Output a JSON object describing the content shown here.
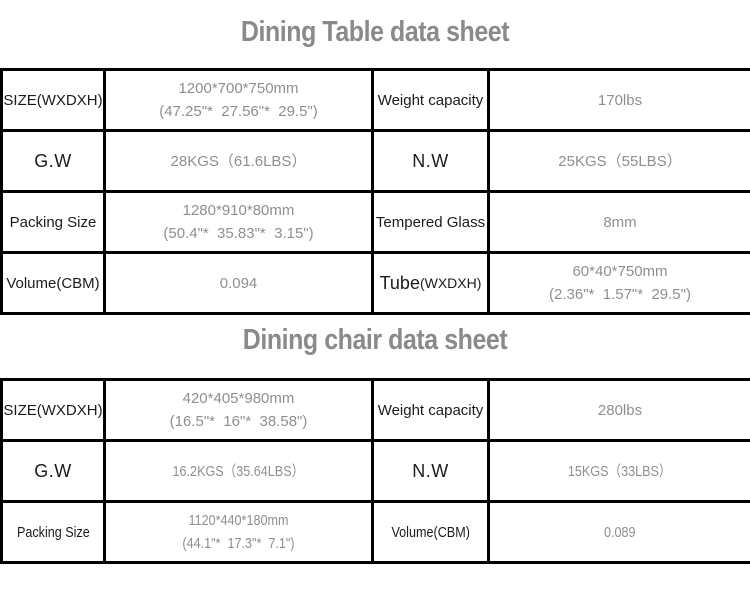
{
  "colors": {
    "title_gray": "#8a8a8a",
    "label_black": "#1c1c1c",
    "value_gray": "#8f8f8f",
    "border_black": "#000000",
    "page_background": "#ffffff"
  },
  "tables": [
    {
      "title": "Dining Table data sheet",
      "rows": [
        {
          "cells": [
            {
              "text": "SIZE(WXDXH)"
            },
            {
              "line1": "1200*700*750mm",
              "line2": "(47.25\"*  27.56\"*  29.5\")"
            },
            {
              "text": "Weight capacity"
            },
            {
              "line1": "170lbs"
            }
          ]
        },
        {
          "cells": [
            {
              "text": "G.W"
            },
            {
              "line1": "28KGS（61.6LBS）"
            },
            {
              "text": "N.W"
            },
            {
              "line1": "25KGS（55LBS）"
            }
          ]
        },
        {
          "cells": [
            {
              "text": "Packing Size"
            },
            {
              "line1": "1280*910*80mm",
              "line2": "(50.4\"*  35.83\"*  3.15\")"
            },
            {
              "text": "Tempered Glass"
            },
            {
              "line1": "8mm"
            }
          ]
        },
        {
          "cells": [
            {
              "text": "Volume(CBM)"
            },
            {
              "line1": "0.094"
            },
            {
              "main": "Tube",
              "sub": "(WXDXH)"
            },
            {
              "line1": "60*40*750mm",
              "line2": "(2.36\"*  1.57\"*  29.5\")"
            }
          ]
        }
      ]
    },
    {
      "title": "Dining chair data sheet",
      "rows": [
        {
          "cells": [
            {
              "text": "SIZE(WXDXH)"
            },
            {
              "line1": "420*405*980mm",
              "line2": "(16.5\"*  16\"*  38.58\")"
            },
            {
              "text": "Weight capacity"
            },
            {
              "line1": "280lbs"
            }
          ]
        },
        {
          "cells": [
            {
              "text": "G.W"
            },
            {
              "line1": "16.2KGS（35.64LBS）"
            },
            {
              "text": "N.W"
            },
            {
              "line1": "15KGS（33LBS）"
            }
          ]
        },
        {
          "cells": [
            {
              "text": "Packing Size"
            },
            {
              "line1": "1120*440*180mm",
              "line2": "(44.1\"*  17.3\"*  7.1\")"
            },
            {
              "text": "Volume(CBM)"
            },
            {
              "line1": "0.089"
            }
          ]
        }
      ]
    }
  ]
}
